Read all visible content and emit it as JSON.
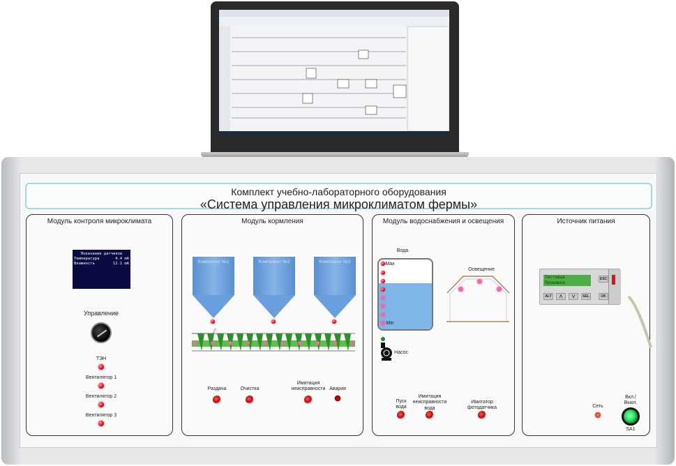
{
  "panel_title": {
    "line1": "Комплект учебно-лабораторного оборудования",
    "line2": "«Система управления микроклиматом фермы»"
  },
  "microclimate": {
    "title": "Модуль контроля микроклимата",
    "display": {
      "header": "Показания датчиков",
      "rows": [
        {
          "label": "Температура",
          "value": "4.4 mA"
        },
        {
          "label": "Влажность",
          "value": "12.1 mA"
        }
      ]
    },
    "control_label": "Управление",
    "indicators": [
      "ТЭН",
      "Вентилятор 1",
      "Вентилятор 2",
      "Вентилятор 3"
    ]
  },
  "feeding": {
    "title": "Модуль кормления",
    "silos": [
      "Компонент №1",
      "Компонент №2",
      "Компонент №3"
    ],
    "buttons": [
      "Раздача",
      "Очистка",
      "Имитация неисправности"
    ],
    "alarm_label": "Авария"
  },
  "water": {
    "title": "Модуль водоснабжения и освещения",
    "tank_label": "Вода",
    "level_max": "Max",
    "level_min": "Min",
    "pump_label": "Насос",
    "lighting_label": "Освещение",
    "buttons": [
      "Пуск вода",
      "Имитация неисправности вода",
      "Имитатор фотодатчика"
    ]
  },
  "power": {
    "title": "Источник питания",
    "lcd": [
      "Тестовая",
      "Прошивка"
    ],
    "keys": [
      "ALT",
      "⋀",
      "⋁",
      "SEL",
      "ESC",
      "OK"
    ],
    "net_label": "Сеть",
    "switch_label": "Вкл./ Выкл.",
    "switch_id": "SA1"
  },
  "colors": {
    "tank_water": "#7fb6e8",
    "silo": "#6a9fdd",
    "auger": "#5cc04a",
    "switch_on": "#1ee35a",
    "led_red": "#e0001a"
  }
}
